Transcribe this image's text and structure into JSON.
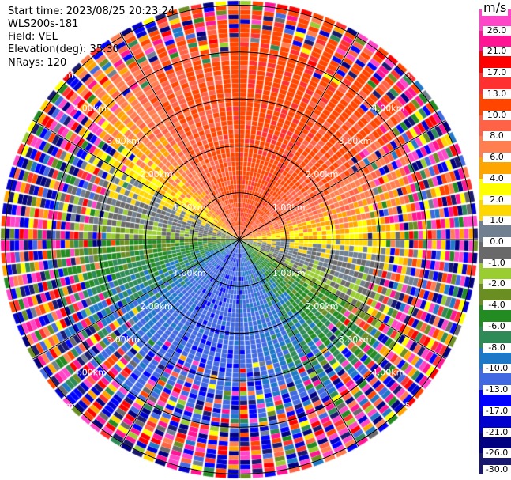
{
  "header": {
    "start_time": "Start time: 2023/08/25 20:23:24",
    "instrument": "WLS200s-181",
    "field": "Field: VEL",
    "elevation": "Elevation(deg): 35.30",
    "nrays": "NRays: 120"
  },
  "chart_data": {
    "type": "heatmap",
    "projection": "polar (PPI)",
    "field": "VEL",
    "n_rays": 120,
    "range_rings": [
      "1.00km",
      "2.00km",
      "3.00km",
      "4.00km",
      "5.00km"
    ],
    "range_ring_km": [
      1,
      2,
      3,
      4,
      5
    ],
    "azimuth_spokes_deg": [
      0,
      30,
      60,
      90,
      120,
      150,
      180,
      210,
      240,
      270,
      300,
      330
    ],
    "pattern": "positive (toward red) velocities to the north, negative (blue) to the south, near-zero along east-west; noisy at far range",
    "colorbar": {
      "title": "m/s",
      "tick_labels": [
        "26.0",
        "21.0",
        "17.0",
        "13.0",
        "10.0",
        "8.0",
        "6.0",
        "4.0",
        "2.0",
        "1.0",
        "0.0",
        "-1.0",
        "-2.0",
        "-4.0",
        "-6.0",
        "-8.0",
        "-10.0",
        "-13.0",
        "-17.0",
        "-21.0",
        "-26.0",
        "-30.0"
      ],
      "colors": [
        "#ff45c8",
        "#ff1493",
        "#ff0000",
        "#ff3030",
        "#ff4500",
        "#ff6347",
        "#ff7f50",
        "#ffa500",
        "#ffff00",
        "#ffd700",
        "#708090",
        "#696969",
        "#9acd32",
        "#6b8e23",
        "#228b22",
        "#2e8b57",
        "#1e78c8",
        "#4169e1",
        "#0000ff",
        "#0000cd",
        "#000080",
        "#191970"
      ],
      "range": [
        -30,
        30
      ]
    }
  }
}
